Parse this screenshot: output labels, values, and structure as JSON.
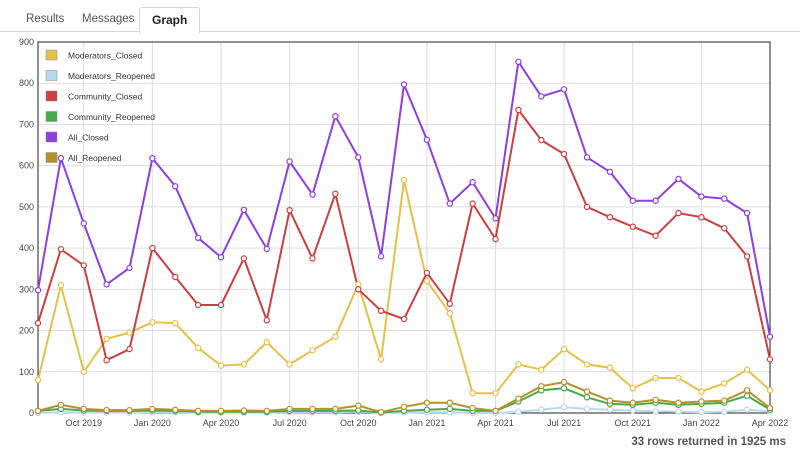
{
  "tabs": [
    {
      "label": "Results"
    },
    {
      "label": "Messages"
    },
    {
      "label": "Graph"
    }
  ],
  "status": "33 rows returned in 1925 ms",
  "chart_data": {
    "type": "line",
    "title": "",
    "xlabel": "",
    "ylabel": "",
    "ylim": [
      0,
      900
    ],
    "yticks": [
      0,
      100,
      200,
      300,
      400,
      500,
      600,
      700,
      800,
      900
    ],
    "grid": true,
    "legend_position": "top-left",
    "x": [
      "2019-08",
      "2019-09",
      "2019-10",
      "2019-11",
      "2019-12",
      "2020-01",
      "2020-02",
      "2020-03",
      "2020-04",
      "2020-05",
      "2020-06",
      "2020-07",
      "2020-08",
      "2020-09",
      "2020-10",
      "2020-11",
      "2020-12",
      "2021-01",
      "2021-02",
      "2021-03",
      "2021-04",
      "2021-05",
      "2021-06",
      "2021-07",
      "2021-08",
      "2021-09",
      "2021-10",
      "2021-11",
      "2021-12",
      "2022-01",
      "2022-02",
      "2022-03",
      "2022-04"
    ],
    "xtick_labels": [
      {
        "x": "2019-10",
        "label": "Oct 2019"
      },
      {
        "x": "2020-01",
        "label": "Jan 2020"
      },
      {
        "x": "2020-04",
        "label": "Apr 2020"
      },
      {
        "x": "2020-07",
        "label": "Jul 2020"
      },
      {
        "x": "2020-10",
        "label": "Oct 2020"
      },
      {
        "x": "2021-01",
        "label": "Jan 2021"
      },
      {
        "x": "2021-04",
        "label": "Apr 2021"
      },
      {
        "x": "2021-07",
        "label": "Jul 2021"
      },
      {
        "x": "2021-10",
        "label": "Oct 2021"
      },
      {
        "x": "2022-01",
        "label": "Jan 2022"
      },
      {
        "x": "2022-04",
        "label": "Apr 2022"
      }
    ],
    "series": [
      {
        "name": "Moderators_Closed",
        "color": "#e6c04a",
        "values": [
          80,
          310,
          100,
          180,
          195,
          220,
          218,
          158,
          115,
          118,
          172,
          118,
          152,
          185,
          312,
          130,
          565,
          320,
          242,
          48,
          48,
          118,
          105,
          155,
          118,
          110,
          60,
          85,
          85,
          52,
          72,
          105,
          55
        ]
      },
      {
        "name": "Moderators_Reopened",
        "color": "#b8d8f2",
        "values": [
          0,
          2,
          1,
          1,
          1,
          2,
          2,
          1,
          1,
          1,
          1,
          2,
          2,
          2,
          3,
          1,
          1,
          2,
          2,
          0,
          0,
          3,
          8,
          14,
          10,
          8,
          6,
          4,
          3,
          2,
          3,
          8,
          4
        ]
      },
      {
        "name": "Community_Closed",
        "color": "#c84040",
        "values": [
          218,
          397,
          358,
          128,
          155,
          400,
          330,
          262,
          262,
          375,
          225,
          492,
          375,
          532,
          300,
          248,
          228,
          340,
          265,
          508,
          422,
          735,
          662,
          628,
          500,
          475,
          452,
          430,
          485,
          475,
          448,
          380,
          130
        ]
      },
      {
        "name": "Community_Reopened",
        "color": "#4aa84a",
        "values": [
          5,
          10,
          6,
          5,
          5,
          6,
          5,
          3,
          3,
          3,
          3,
          5,
          5,
          5,
          6,
          1,
          5,
          8,
          10,
          5,
          5,
          28,
          55,
          60,
          38,
          22,
          20,
          25,
          20,
          22,
          25,
          42,
          8
        ]
      },
      {
        "name": "All_Closed",
        "color": "#8d3fe0",
        "values": [
          298,
          618,
          460,
          312,
          352,
          618,
          550,
          425,
          378,
          493,
          398,
          610,
          530,
          720,
          620,
          380,
          797,
          663,
          508,
          560,
          472,
          852,
          768,
          785,
          620,
          585,
          515,
          515,
          568,
          525,
          520,
          485,
          185
        ]
      },
      {
        "name": "All_Reopened",
        "color": "#b8902a",
        "values": [
          5,
          20,
          10,
          7,
          7,
          10,
          8,
          5,
          5,
          6,
          5,
          10,
          10,
          10,
          18,
          2,
          15,
          25,
          25,
          12,
          5,
          35,
          65,
          75,
          52,
          30,
          25,
          32,
          25,
          28,
          30,
          55,
          12
        ]
      }
    ]
  }
}
